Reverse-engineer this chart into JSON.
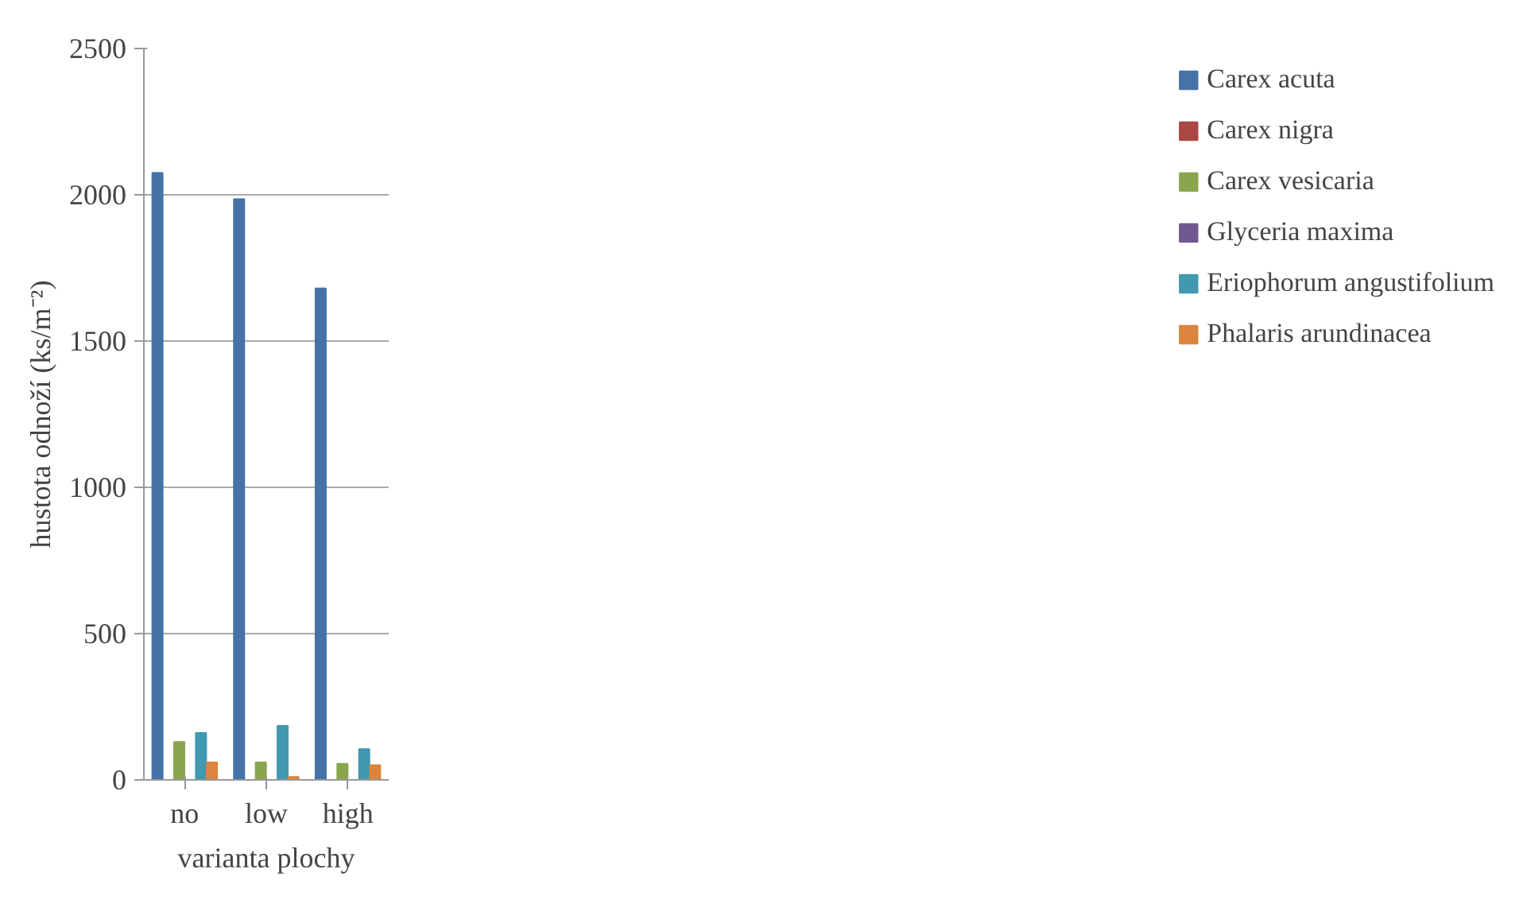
{
  "chart_data": {
    "type": "bar",
    "categories": [
      "no",
      "low",
      "high"
    ],
    "xlabel": "varianta plochy",
    "ylabel": "hustota odnoží (ks/m⁻²)",
    "ylim": [
      0,
      2500
    ],
    "yticks": [
      0,
      500,
      1000,
      1500,
      2000,
      2500
    ],
    "grid": "y",
    "legend": "right",
    "series": [
      {
        "name": "Carex acuta",
        "color": "#4572a7",
        "values": [
          2075,
          1985,
          1680
        ]
      },
      {
        "name": "Carex nigra",
        "color": "#aa4643",
        "values": [
          0,
          0,
          0
        ]
      },
      {
        "name": "Carex vesicaria",
        "color": "#89a54e",
        "values": [
          130,
          60,
          55
        ]
      },
      {
        "name": "Glyceria maxima",
        "color": "#71588f",
        "values": [
          0,
          0,
          0
        ]
      },
      {
        "name": "Eriophorum angustifolium",
        "color": "#4198af",
        "values": [
          160,
          185,
          105
        ]
      },
      {
        "name": "Phalaris arundinacea",
        "color": "#db843d",
        "values": [
          60,
          10,
          50
        ]
      }
    ]
  }
}
